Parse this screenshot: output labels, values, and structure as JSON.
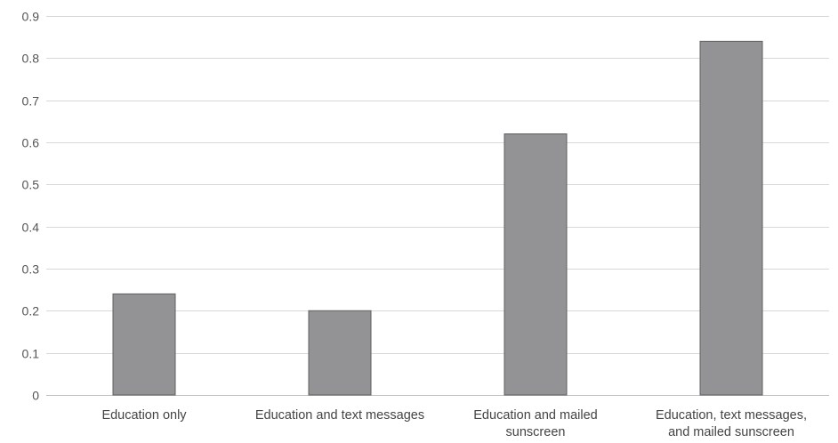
{
  "chart_data": {
    "type": "bar",
    "categories": [
      [
        "Education only"
      ],
      [
        "Education and text messages"
      ],
      [
        "Education and mailed",
        "sunscreen"
      ],
      [
        "Education, text messages,",
        "and mailed sunscreen"
      ]
    ],
    "values": [
      0.24,
      0.2,
      0.62,
      0.84
    ],
    "title": "",
    "xlabel": "",
    "ylabel": "",
    "ylim": [
      0,
      0.9
    ],
    "yticks": [
      "0",
      "0.1",
      "0.2",
      "0.3",
      "0.4",
      "0.5",
      "0.6",
      "0.7",
      "0.8",
      "0.9"
    ],
    "grid": true,
    "legend": "none",
    "bar_color": "#939396",
    "bar_outline_color": "#5f5f5f",
    "grid_color": "#d9d9d9"
  }
}
